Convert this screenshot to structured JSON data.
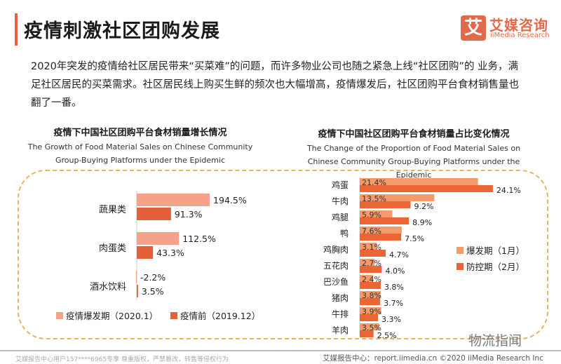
{
  "header": {
    "title": "疫情刺激社区团购发展",
    "logo_mark": "艾",
    "logo_cn": "艾媒咨询",
    "logo_en": "iiMedia Research"
  },
  "intro": "2020年突发的疫情给社区居民带来“买菜难”的问题，而许多物业公司也随之紧急上线“社区团购”的 业务，满足社区居民的买菜需求。社区居民线上购买生鲜的频次也大幅增高，疫情爆发后，社区团购平台食材销售量也翻了一番。",
  "chart_data": [
    {
      "type": "bar",
      "orientation": "horizontal",
      "title": "疫情下中国社区团购平台食材销量增长情况",
      "subtitle": "The Growth of Food Material Sales on Chinese Community Group-Buying Platforms under the Epidemic",
      "categories": [
        "蔬果类",
        "肉蛋类",
        "酒水饮料"
      ],
      "series": [
        {
          "name": "疫情爆发期（2020.1）",
          "values": [
            194.5,
            112.5,
            -2.2
          ],
          "labels": [
            "194.5%",
            "112.5%",
            "-2.2%"
          ],
          "color": "#f6a18c"
        },
        {
          "name": "疫情前（2019.12）",
          "values": [
            91.3,
            43.3,
            3.5
          ],
          "labels": [
            "91.3%",
            "43.3%",
            "3.5%"
          ],
          "color": "#e2603a"
        }
      ],
      "legend": "bottom"
    },
    {
      "type": "bar",
      "orientation": "horizontal",
      "title": "疫情下中国社区团购平台食材销量占比变化情况",
      "subtitle": "The Change of the Proportion of Food Material Sales on Chinese Community Group-Buying Platforms under the Epidemic",
      "categories": [
        "鸡蛋",
        "牛肉",
        "鸡腿",
        "鸭",
        "鸡胸肉",
        "五花肉",
        "巴沙鱼",
        "猪肉",
        "牛排",
        "羊肉"
      ],
      "series": [
        {
          "name": "爆发期（1月）",
          "values": [
            21.4,
            13.5,
            5.9,
            7.6,
            3.1,
            2.7,
            2.4,
            3.8,
            3.9,
            3.5
          ],
          "labels": [
            "21.4%",
            "13.5%",
            "5.9%",
            "7.6%",
            "3.1%",
            "2.7%",
            "2.4%",
            "3.8%",
            "3.9%",
            "3.5%"
          ],
          "color": "#f59a6a"
        },
        {
          "name": "防控期（2月）",
          "values": [
            24.1,
            9.2,
            8.9,
            7.5,
            4.7,
            4.0,
            3.8,
            3.7,
            3.3,
            2.5
          ],
          "labels": [
            "24.1%",
            "9.2%",
            "8.9%",
            "7.5%",
            "4.7%",
            "4.0%",
            "3.8%",
            "3.7%",
            "3.3%",
            "2.5%"
          ],
          "color": "#ec6535"
        }
      ],
      "legend": "right"
    }
  ],
  "footer": {
    "left": "艾媒报告中心用户157****6965专享 尊重版权，严禁篡改，转售等侵权行为",
    "right": "艾媒报告中心：report.iimedia.cn   ©2020  iiMedia Research  Inc",
    "watermark": "物流指闻"
  }
}
